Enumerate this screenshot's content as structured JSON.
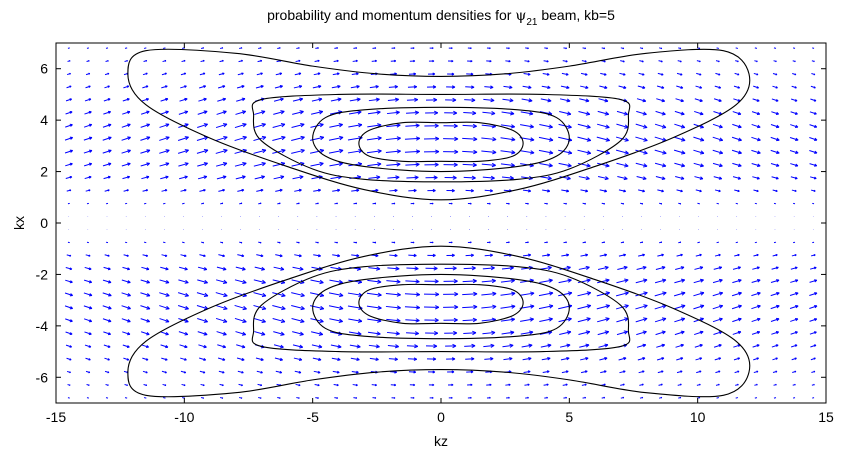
{
  "chart_data": {
    "type": "quiver-contour",
    "title": {
      "prefix": "probability and momentum densities for ",
      "psi": "ψ",
      "psi_subscript": "21",
      "suffix": " beam, kb=5"
    },
    "xlabel": "kz",
    "ylabel": "kx",
    "xlim": [
      -15,
      15
    ],
    "ylim": [
      -7,
      7
    ],
    "x_ticks": [
      -15,
      -10,
      -5,
      0,
      5,
      10,
      15
    ],
    "x_tick_labels": [
      "-15",
      "-10",
      "-5",
      "0",
      "5",
      "10",
      "15"
    ],
    "y_ticks": [
      -6,
      -4,
      -2,
      0,
      2,
      4,
      6
    ],
    "y_tick_labels": [
      "-6",
      "-4",
      "-2",
      "0",
      "2",
      "4",
      "6"
    ],
    "grid": false,
    "colors": {
      "arrows": "#0000ff",
      "contours": "#000000",
      "axes": "#000000"
    },
    "contours": [
      {
        "lobe": "upper",
        "level": 1,
        "points": [
          [
            -11.5,
            6.7
          ],
          [
            -8,
            6.6
          ],
          [
            -5,
            6.1
          ],
          [
            -2.5,
            5.8
          ],
          [
            0,
            5.7
          ],
          [
            2.5,
            5.8
          ],
          [
            5,
            6.1
          ],
          [
            8,
            6.6
          ],
          [
            11,
            6.7
          ],
          [
            12,
            5.8
          ],
          [
            11.5,
            4.6
          ],
          [
            9,
            3.3
          ],
          [
            6,
            2.2
          ],
          [
            3,
            1.3
          ],
          [
            0,
            0.9
          ],
          [
            -3,
            1.3
          ],
          [
            -6,
            2.2
          ],
          [
            -9,
            3.3
          ],
          [
            -11.5,
            4.6
          ],
          [
            -12.2,
            5.8
          ],
          [
            -11.5,
            6.7
          ]
        ]
      },
      {
        "lobe": "upper",
        "level": 2,
        "points": [
          [
            -7.3,
            4.2
          ],
          [
            -7,
            4.8
          ],
          [
            -4,
            5.0
          ],
          [
            0,
            5.0
          ],
          [
            4,
            5.0
          ],
          [
            7,
            4.8
          ],
          [
            7.3,
            4.2
          ],
          [
            7,
            3.2
          ],
          [
            5,
            2.1
          ],
          [
            3,
            1.7
          ],
          [
            0,
            1.6
          ],
          [
            -3,
            1.7
          ],
          [
            -5,
            2.1
          ],
          [
            -7,
            3.2
          ],
          [
            -7.3,
            4.2
          ]
        ]
      },
      {
        "lobe": "upper",
        "level": 3,
        "points": [
          [
            -5,
            3.3
          ],
          [
            -4.5,
            4.1
          ],
          [
            -3,
            4.4
          ],
          [
            0,
            4.5
          ],
          [
            3,
            4.4
          ],
          [
            4.5,
            4.1
          ],
          [
            5,
            3.3
          ],
          [
            4.5,
            2.6
          ],
          [
            3,
            2.2
          ],
          [
            0,
            2.0
          ],
          [
            -3,
            2.2
          ],
          [
            -4.5,
            2.6
          ],
          [
            -5,
            3.3
          ]
        ]
      },
      {
        "lobe": "upper",
        "level": 4,
        "points": [
          [
            -3.2,
            3.1
          ],
          [
            -2.8,
            3.6
          ],
          [
            -1.5,
            3.9
          ],
          [
            0,
            3.9
          ],
          [
            1.5,
            3.9
          ],
          [
            2.8,
            3.6
          ],
          [
            3.2,
            3.1
          ],
          [
            2.8,
            2.6
          ],
          [
            1.5,
            2.4
          ],
          [
            0,
            2.4
          ],
          [
            -1.5,
            2.4
          ],
          [
            -2.8,
            2.6
          ],
          [
            -3.2,
            3.1
          ]
        ]
      },
      {
        "lobe": "lower",
        "level": 1,
        "points": [
          [
            -11.5,
            -6.7
          ],
          [
            -8,
            -6.6
          ],
          [
            -5,
            -6.1
          ],
          [
            -2.5,
            -5.8
          ],
          [
            0,
            -5.7
          ],
          [
            2.5,
            -5.8
          ],
          [
            5,
            -6.1
          ],
          [
            8,
            -6.6
          ],
          [
            11,
            -6.7
          ],
          [
            12,
            -5.8
          ],
          [
            11.5,
            -4.6
          ],
          [
            9,
            -3.3
          ],
          [
            6,
            -2.2
          ],
          [
            3,
            -1.3
          ],
          [
            0,
            -0.9
          ],
          [
            -3,
            -1.3
          ],
          [
            -6,
            -2.2
          ],
          [
            -9,
            -3.3
          ],
          [
            -11.5,
            -4.6
          ],
          [
            -12.2,
            -5.8
          ],
          [
            -11.5,
            -6.7
          ]
        ]
      },
      {
        "lobe": "lower",
        "level": 2,
        "points": [
          [
            -7.3,
            -4.2
          ],
          [
            -7,
            -4.8
          ],
          [
            -4,
            -5.0
          ],
          [
            0,
            -5.0
          ],
          [
            4,
            -5.0
          ],
          [
            7,
            -4.8
          ],
          [
            7.3,
            -4.2
          ],
          [
            7,
            -3.2
          ],
          [
            5,
            -2.1
          ],
          [
            3,
            -1.7
          ],
          [
            0,
            -1.6
          ],
          [
            -3,
            -1.7
          ],
          [
            -5,
            -2.1
          ],
          [
            -7,
            -3.2
          ],
          [
            -7.3,
            -4.2
          ]
        ]
      },
      {
        "lobe": "lower",
        "level": 3,
        "points": [
          [
            -5,
            -3.3
          ],
          [
            -4.5,
            -4.1
          ],
          [
            -3,
            -4.4
          ],
          [
            0,
            -4.5
          ],
          [
            3,
            -4.4
          ],
          [
            4.5,
            -4.1
          ],
          [
            5,
            -3.3
          ],
          [
            4.5,
            -2.6
          ],
          [
            3,
            -2.2
          ],
          [
            0,
            -2.0
          ],
          [
            -3,
            -2.2
          ],
          [
            -4.5,
            -2.6
          ],
          [
            -5,
            -3.3
          ]
        ]
      },
      {
        "lobe": "lower",
        "level": 4,
        "points": [
          [
            -3.2,
            -3.1
          ],
          [
            -2.8,
            -3.6
          ],
          [
            -1.5,
            -3.9
          ],
          [
            0,
            -3.9
          ],
          [
            1.5,
            -3.9
          ],
          [
            2.8,
            -3.6
          ],
          [
            3.2,
            -3.1
          ],
          [
            2.8,
            -2.6
          ],
          [
            1.5,
            -2.4
          ],
          [
            0,
            -2.4
          ],
          [
            -1.5,
            -2.4
          ],
          [
            -2.8,
            -2.6
          ],
          [
            -3.2,
            -3.1
          ]
        ]
      }
    ],
    "vector_field": {
      "description": "momentum density arrows, pointing mostly in +kz, strongest near kx=±3, vanishing along kx=0",
      "x_range": [
        -14.5,
        14.5
      ],
      "y_range": [
        -6.8,
        6.8
      ],
      "columns": 40,
      "rows": 28
    }
  }
}
